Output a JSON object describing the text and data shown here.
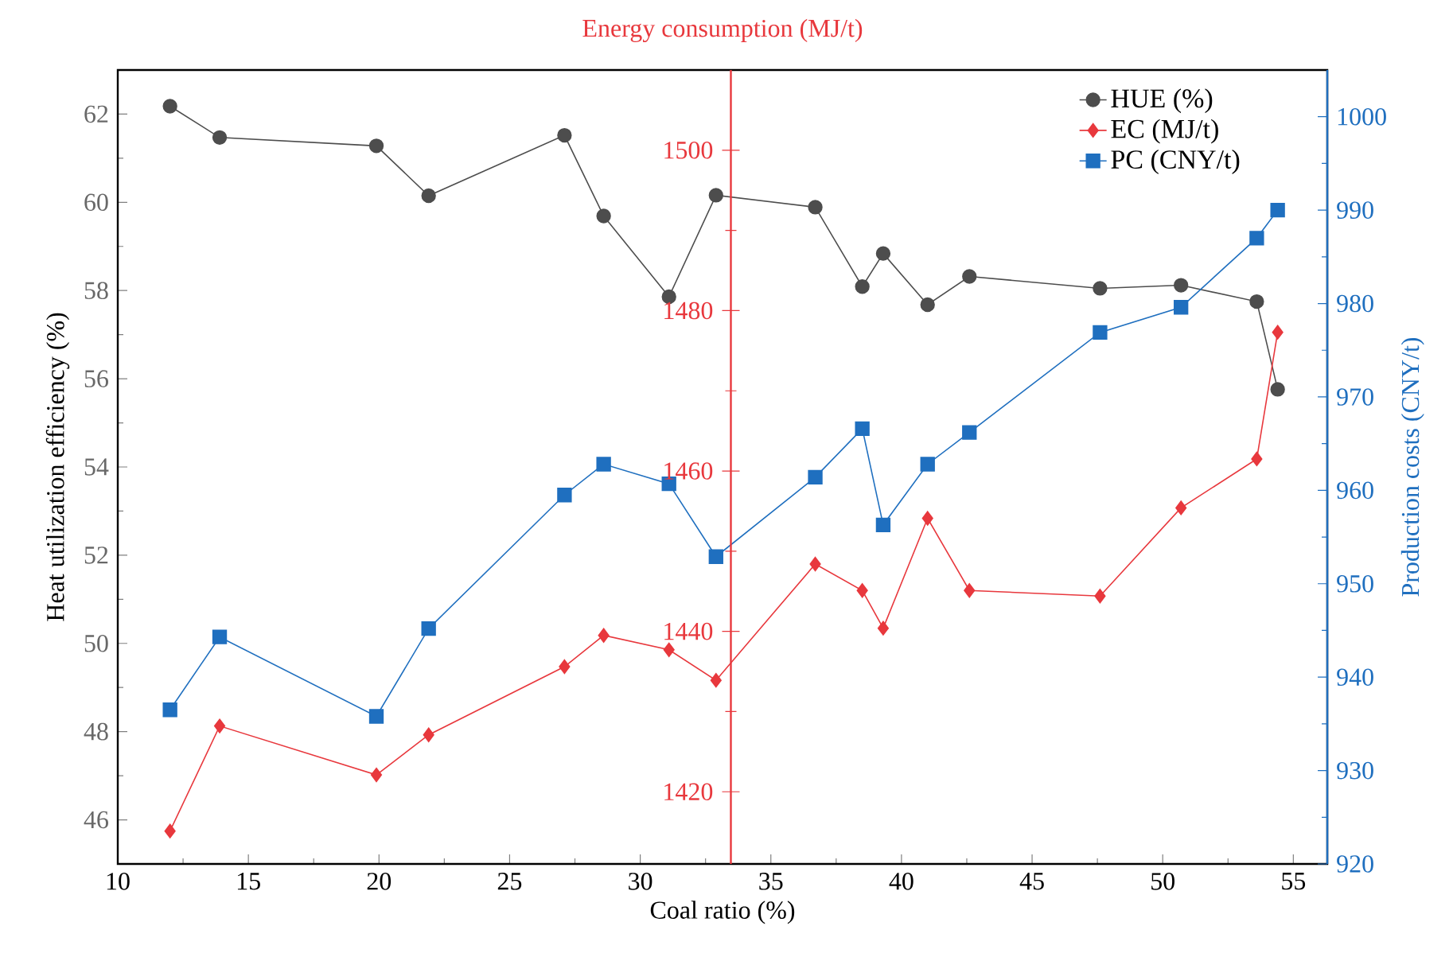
{
  "chart_data": {
    "type": "line",
    "xlabel": "Coal ratio (%)",
    "ylabel": "Heat utilization efficiency (%)",
    "y2label": "Production costs (CNY/t)",
    "y3label": "Energy consumption (MJ/t)",
    "x": [
      12,
      13.9,
      19.9,
      21.9,
      27.1,
      28.6,
      31.1,
      32.9,
      36.7,
      38.5,
      39.3,
      41.0,
      42.6,
      47.6,
      50.7,
      53.6,
      54.4
    ],
    "series": [
      {
        "name": "HUE (%)",
        "color": "#4d4d4d",
        "marker": "circle",
        "axis": "y",
        "values": [
          62.18,
          61.47,
          61.28,
          60.15,
          61.52,
          59.69,
          57.86,
          60.16,
          59.89,
          58.09,
          58.84,
          57.68,
          58.32,
          58.05,
          58.12,
          57.75,
          55.76
        ]
      },
      {
        "name": "EC (MJ/t)",
        "color": "#e8383d",
        "marker": "diamond",
        "axis": "y3",
        "values": [
          1415.1,
          1428.2,
          1422.1,
          1427.1,
          1435.6,
          1439.5,
          1437.7,
          1433.9,
          1448.4,
          1445.1,
          1440.4,
          1454.1,
          1445.1,
          1444.4,
          1455.4,
          1461.5,
          1477.3
        ]
      },
      {
        "name": "PC (CNY/t)",
        "color": "#1f6fbf",
        "marker": "square",
        "axis": "y2",
        "values": [
          936.5,
          944.3,
          935.8,
          945.2,
          959.5,
          962.8,
          960.7,
          952.9,
          961.4,
          966.6,
          956.3,
          962.8,
          966.2,
          976.9,
          979.6,
          987.0,
          990.0
        ]
      }
    ],
    "xlim": [
      10,
      56.3
    ],
    "xticks": [
      10,
      15,
      20,
      25,
      30,
      35,
      40,
      45,
      50,
      55
    ],
    "ylim": [
      45,
      63
    ],
    "yticks": [
      46,
      48,
      50,
      52,
      54,
      56,
      58,
      60,
      62
    ],
    "y2lim": [
      920,
      1005
    ],
    "y2ticks": [
      920,
      930,
      940,
      950,
      960,
      970,
      980,
      990,
      1000
    ],
    "y3lim": [
      1411,
      1510
    ],
    "y3ticks": [
      1420,
      1440,
      1460,
      1480,
      1500
    ],
    "legend": "top right"
  }
}
